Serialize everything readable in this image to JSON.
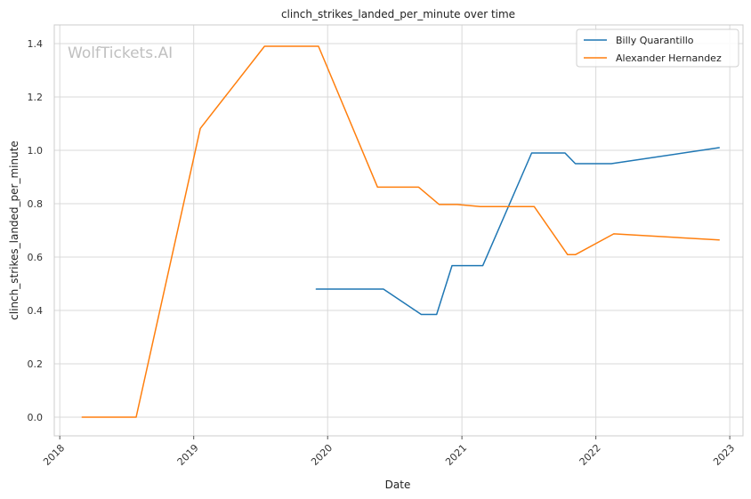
{
  "chart_data": {
    "type": "line",
    "title": "clinch_strikes_landed_per_minute over time",
    "xlabel": "Date",
    "ylabel": "clinch_strikes_landed_per_minute",
    "watermark": "WolfTickets.AI",
    "x_ticks": [
      "2018",
      "2019",
      "2020",
      "2021",
      "2022",
      "2023"
    ],
    "y_ticks": [
      "0.0",
      "0.2",
      "0.4",
      "0.6",
      "0.8",
      "1.0",
      "1.2",
      "1.4"
    ],
    "xlim": [
      "2017-12-17",
      "2023-02-06"
    ],
    "ylim": [
      -0.07,
      1.47
    ],
    "grid": true,
    "legend_position": "top-right",
    "series": [
      {
        "name": "Billy Quarantillo",
        "color": "#1f77b4",
        "points": [
          [
            "2019-12-01",
            0.48
          ],
          [
            "2020-06-01",
            0.48
          ],
          [
            "2020-09-12",
            0.385
          ],
          [
            "2020-10-24",
            0.385
          ],
          [
            "2020-12-05",
            0.568
          ],
          [
            "2021-02-27",
            0.568
          ],
          [
            "2021-07-10",
            0.99
          ],
          [
            "2021-10-09",
            0.99
          ],
          [
            "2021-11-06",
            0.95
          ],
          [
            "2022-02-12",
            0.95
          ],
          [
            "2022-12-03",
            1.01
          ]
        ]
      },
      {
        "name": "Alexander Hernandez",
        "color": "#ff7f0e",
        "points": [
          [
            "2018-03-03",
            0.0
          ],
          [
            "2018-07-28",
            0.0
          ],
          [
            "2019-01-19",
            1.082
          ],
          [
            "2019-07-13",
            1.39
          ],
          [
            "2019-12-07",
            1.39
          ],
          [
            "2020-05-16",
            0.862
          ],
          [
            "2020-09-05",
            0.862
          ],
          [
            "2020-10-31",
            0.797
          ],
          [
            "2020-12-19",
            0.797
          ],
          [
            "2021-02-20",
            0.789
          ],
          [
            "2021-07-17",
            0.789
          ],
          [
            "2021-10-16",
            0.609
          ],
          [
            "2021-11-06",
            0.609
          ],
          [
            "2022-02-19",
            0.687
          ],
          [
            "2022-12-03",
            0.664
          ]
        ]
      }
    ]
  }
}
